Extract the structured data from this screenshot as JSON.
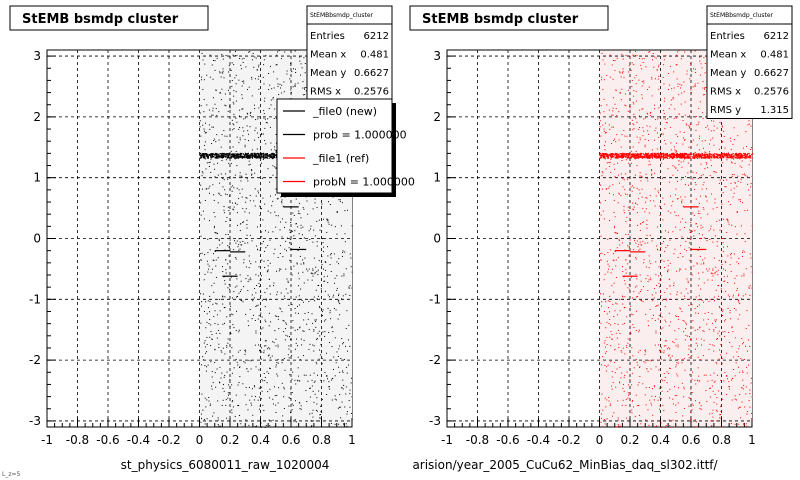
{
  "chart_data": [
    {
      "type": "scatter",
      "title": "StEMB bsmdp cluster",
      "xlabel": "st_physics_6080011_raw_1020004",
      "ylabel": "",
      "xlim": [
        -1,
        1
      ],
      "ylim": [
        -3.1,
        3.1
      ],
      "x_ticks": [
        "-1",
        "-0.8",
        "-0.6",
        "-0.4",
        "-0.2",
        "0",
        "0.2",
        "0.4",
        "0.6",
        "0.8",
        "1"
      ],
      "y_ticks": [
        "-3",
        "-2",
        "-1",
        "0",
        "1",
        "2",
        "3"
      ],
      "grid": true,
      "marker_color": "#000000",
      "stats": {
        "title": "StEMBbsmdp_cluster",
        "rows": [
          {
            "label": "Entries",
            "value": "6212"
          },
          {
            "label": "Mean x",
            "value": "0.481"
          },
          {
            "label": "Mean y",
            "value": "0.6627"
          },
          {
            "label": "RMS x",
            "value": "0.2576"
          }
        ]
      },
      "legend": {
        "placement": "top-right",
        "entries": [
          {
            "label": "_file0 (new)",
            "color": "#000000"
          },
          {
            "label": "prob = 1.000000",
            "color": "#000000"
          },
          {
            "label": "_file1 (ref)",
            "color": "#ff0000"
          },
          {
            "label": "probN = 1.000000",
            "color": "#ff0000"
          }
        ]
      },
      "points": {
        "x_range": [
          0.0,
          1.0
        ],
        "y_range": [
          -3.1,
          3.1
        ],
        "approx_count": 6212,
        "band": {
          "y": 1.37,
          "x_range": [
            0.0,
            1.0
          ]
        },
        "features": [
          {
            "x": [
              0.1,
              0.2
            ],
            "y": -0.2
          },
          {
            "x": [
              0.2,
              0.3
            ],
            "y": -0.22
          },
          {
            "x": [
              0.15,
              0.25
            ],
            "y": -0.62
          },
          {
            "x": [
              0.55,
              0.65
            ],
            "y": 0.52
          },
          {
            "x": [
              0.6,
              0.7
            ],
            "y": -0.18
          }
        ]
      },
      "underline_text": "L_z=5"
    },
    {
      "type": "scatter",
      "title": "StEMB bsmdp cluster",
      "xlabel": "arision/year_2005_CuCu62_MinBias_daq_sl302.ittf/",
      "ylabel": "",
      "xlim": [
        -1,
        1
      ],
      "ylim": [
        -3.1,
        3.1
      ],
      "x_ticks": [
        "-1",
        "-0.8",
        "-0.6",
        "-0.4",
        "-0.2",
        "0",
        "0.2",
        "0.4",
        "0.6",
        "0.8",
        "1"
      ],
      "y_ticks": [
        "-3",
        "-2",
        "-1",
        "0",
        "1",
        "2",
        "3"
      ],
      "grid": true,
      "marker_color": "#ff0000",
      "stats": {
        "title": "StEMBbsmdp_cluster",
        "rows": [
          {
            "label": "Entries",
            "value": "6212"
          },
          {
            "label": "Mean x",
            "value": "0.481"
          },
          {
            "label": "Mean y",
            "value": "0.6627"
          },
          {
            "label": "RMS x",
            "value": "0.2576"
          },
          {
            "label": "RMS y",
            "value": "1.315"
          }
        ]
      },
      "points": {
        "x_range": [
          0.0,
          1.0
        ],
        "y_range": [
          -3.1,
          3.1
        ],
        "approx_count": 6212,
        "band": {
          "y": 1.37,
          "x_range": [
            0.0,
            1.0
          ]
        },
        "features": [
          {
            "x": [
              0.1,
              0.2
            ],
            "y": -0.2
          },
          {
            "x": [
              0.2,
              0.3
            ],
            "y": -0.22
          },
          {
            "x": [
              0.15,
              0.25
            ],
            "y": -0.62
          },
          {
            "x": [
              0.55,
              0.65
            ],
            "y": 0.52
          },
          {
            "x": [
              0.6,
              0.7
            ],
            "y": -0.18
          }
        ]
      }
    }
  ]
}
